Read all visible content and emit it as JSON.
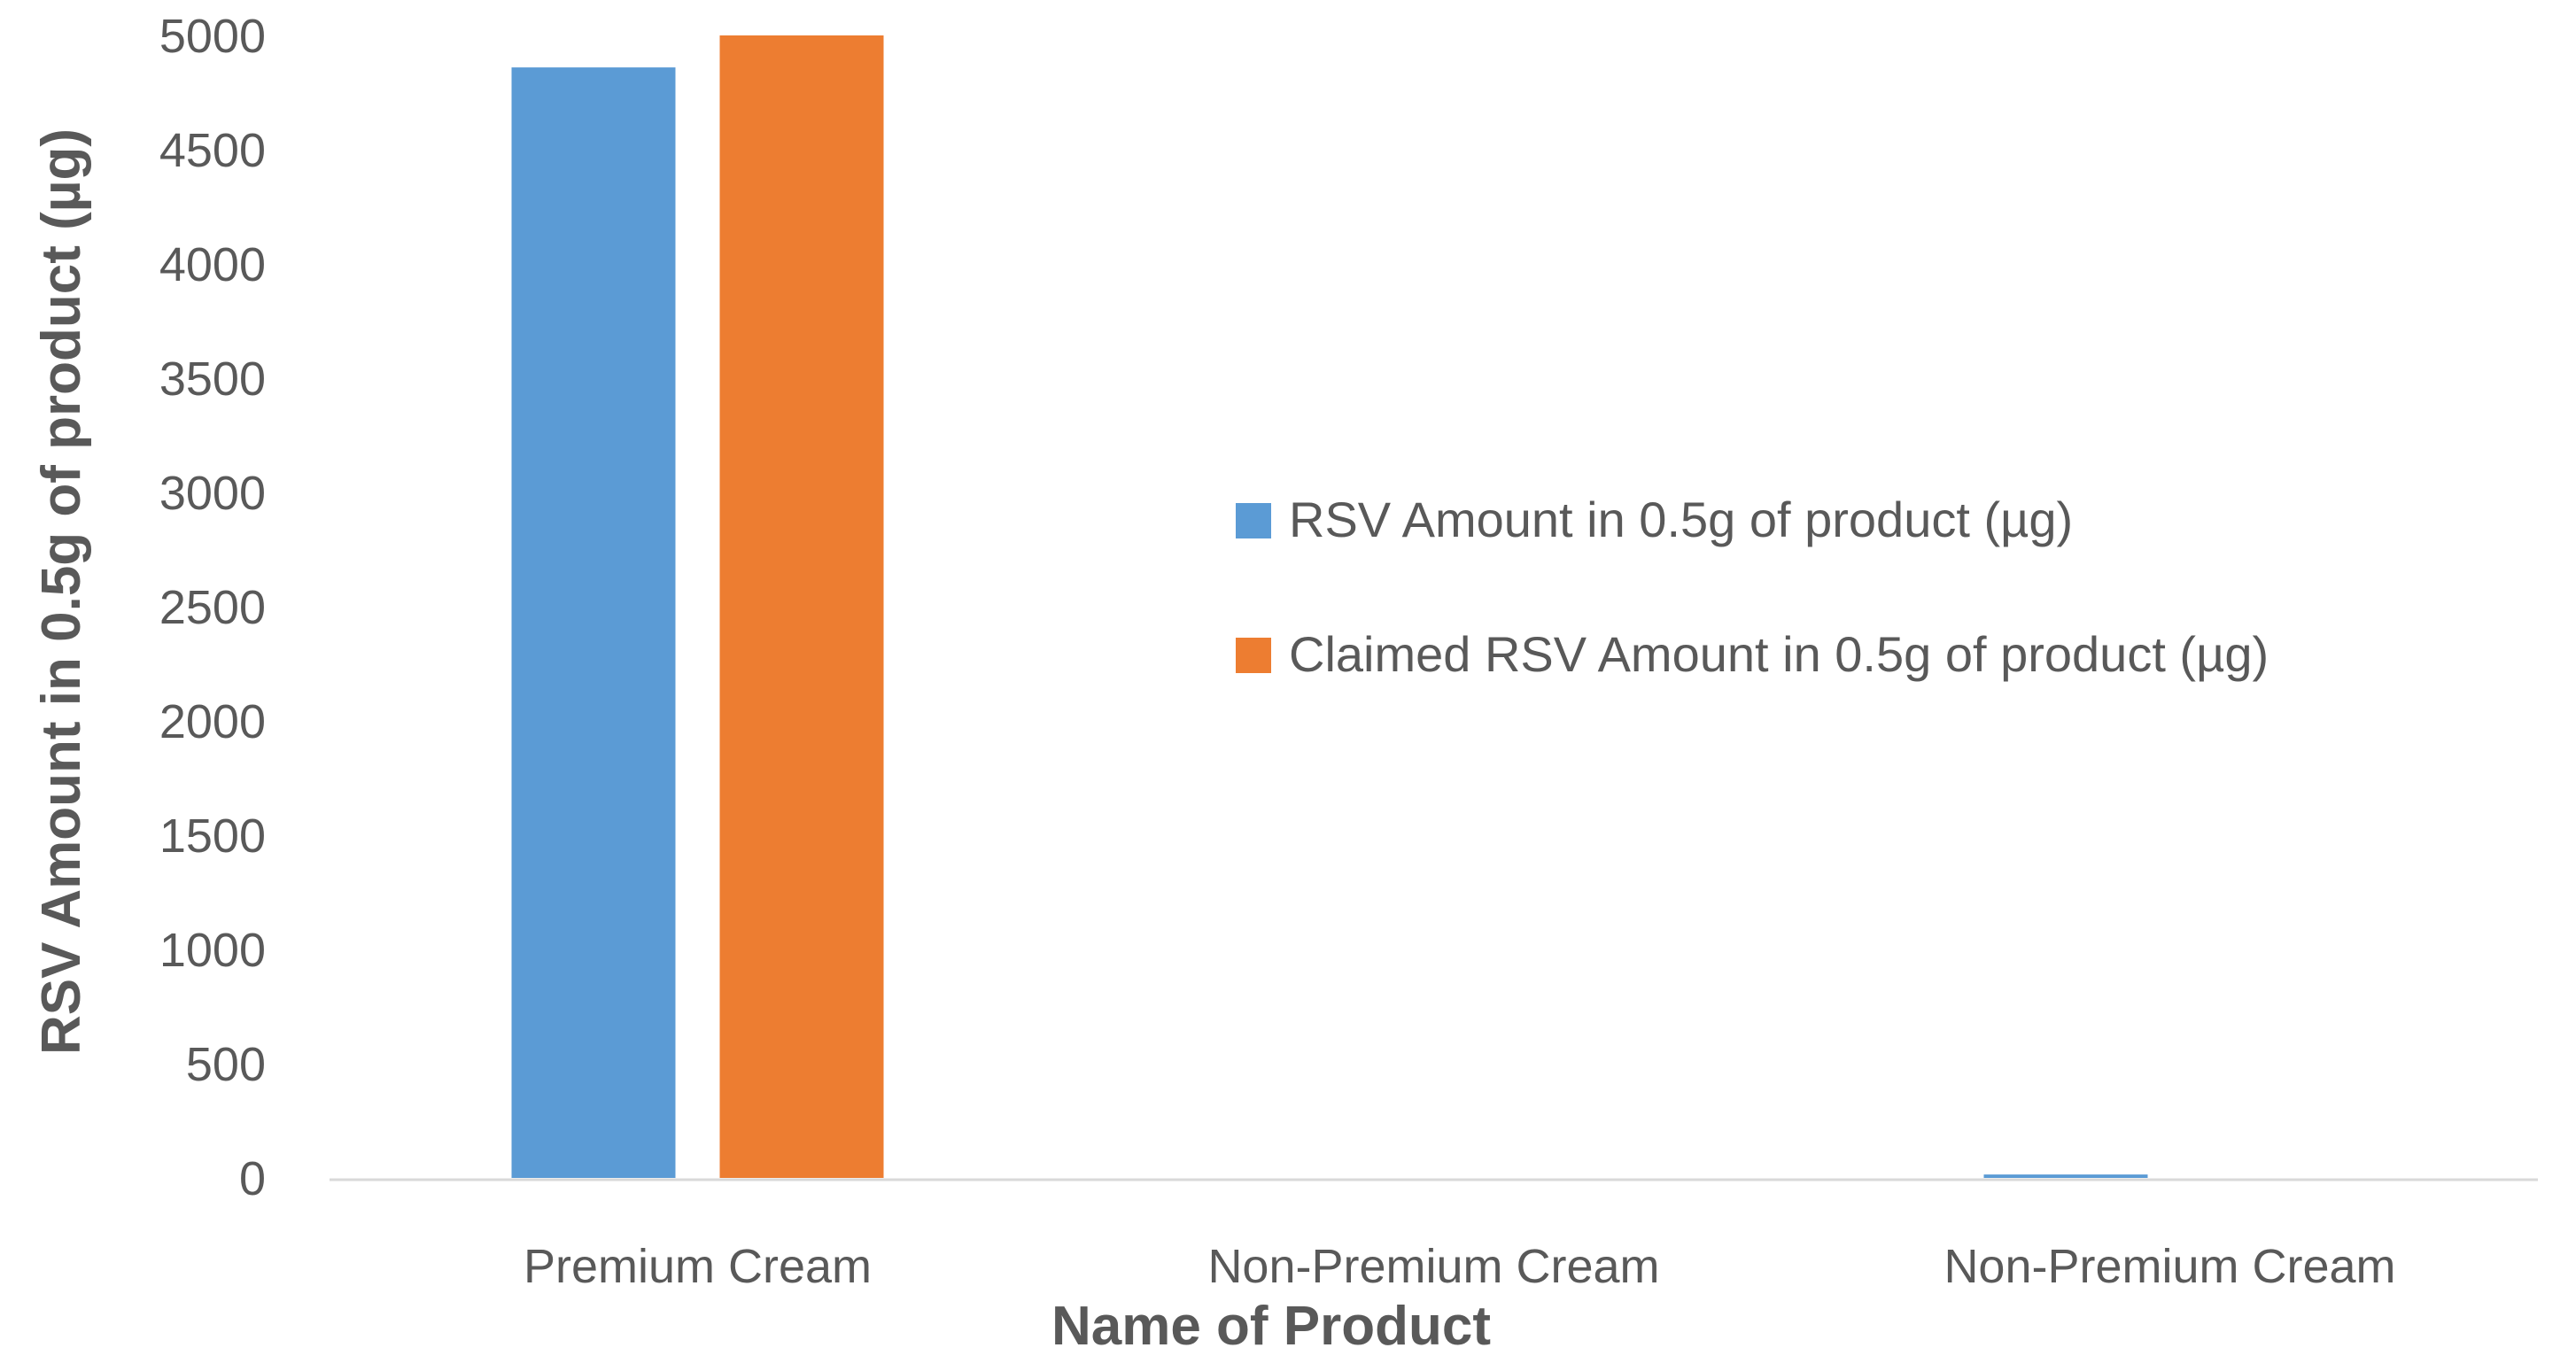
{
  "colors": {
    "series1": "#5B9BD5",
    "series2": "#ED7D31",
    "axis_line": "#D9D9D9",
    "text": "#595959"
  },
  "chart_data": {
    "type": "bar",
    "categories": [
      "Premium Cream",
      "Non-Premium Cream",
      "Non-Premium Cream"
    ],
    "series": [
      {
        "name": "RSV Amount in 0.5g  of product (µg)",
        "values": [
          4860,
          0,
          15
        ]
      },
      {
        "name": "Claimed RSV Amount in 0.5g  of product (µg)",
        "values": [
          5000,
          0,
          0
        ]
      }
    ],
    "xlabel": "Name of Product",
    "ylabel": "RSV Amount in 0.5g of product (µg)",
    "ylim": [
      0,
      5000
    ],
    "yticks": [
      0,
      500,
      1000,
      1500,
      2000,
      2500,
      3000,
      3500,
      4000,
      4500,
      5000
    ],
    "grid": false,
    "legend_position": "right"
  }
}
